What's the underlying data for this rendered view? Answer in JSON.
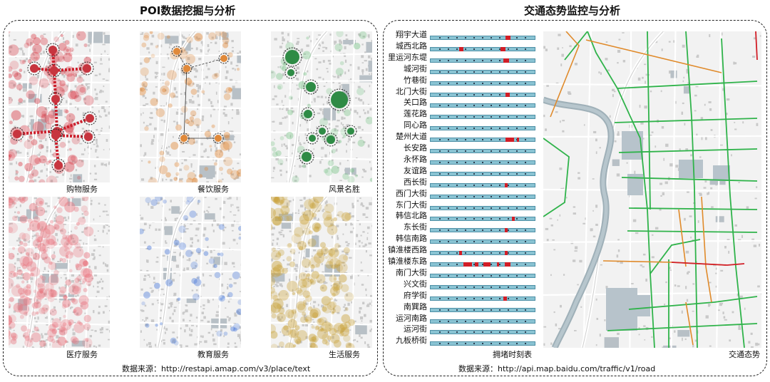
{
  "poi_panel": {
    "title": "POI数据挖掘与分析",
    "maps": [
      {
        "label": "购物服务",
        "color": "#d9434e",
        "style": "network"
      },
      {
        "label": "餐饮服务",
        "color": "#e0893a",
        "style": "network-light"
      },
      {
        "label": "风景名胜",
        "color": "#2e8b45",
        "style": "clusters"
      },
      {
        "label": "医疗服务",
        "color": "#e8737d",
        "style": "heat"
      },
      {
        "label": "教育服务",
        "color": "#4a79d8",
        "style": "scatter"
      },
      {
        "label": "生活服务",
        "color": "#c9a23a",
        "style": "heat"
      }
    ],
    "source": "数据来源：http://restapi.amap.com/v3/place/text"
  },
  "traffic_panel": {
    "title": "交通态势监控与分析",
    "roads": [
      "翔宇大道",
      "城西北路",
      "里运河东堤",
      "城河街",
      "竹巷街",
      "北门大街",
      "关口路",
      "莲花路",
      "同心路",
      "楚州大道",
      "长安路",
      "永怀路",
      "友谊路",
      "西长街",
      "西门大街",
      "东门大街",
      "韩信北路",
      "东长街",
      "韩信南路",
      "镇淮楼西路",
      "镇淮楼东路",
      "南门大街",
      "兴文街",
      "府学街",
      "南巽路",
      "运河南路",
      "运河街",
      "九板桥街"
    ],
    "timeline_caption": "拥堵时刻表",
    "map_caption": "交通态势",
    "legend_colors": {
      "smooth": "#2fb34a",
      "slow": "#e08a2a",
      "jam": "#d11d26",
      "bar": "#89c3d3"
    },
    "source": "数据来源：http://api.map.baidu.com/traffic/v1/road"
  }
}
